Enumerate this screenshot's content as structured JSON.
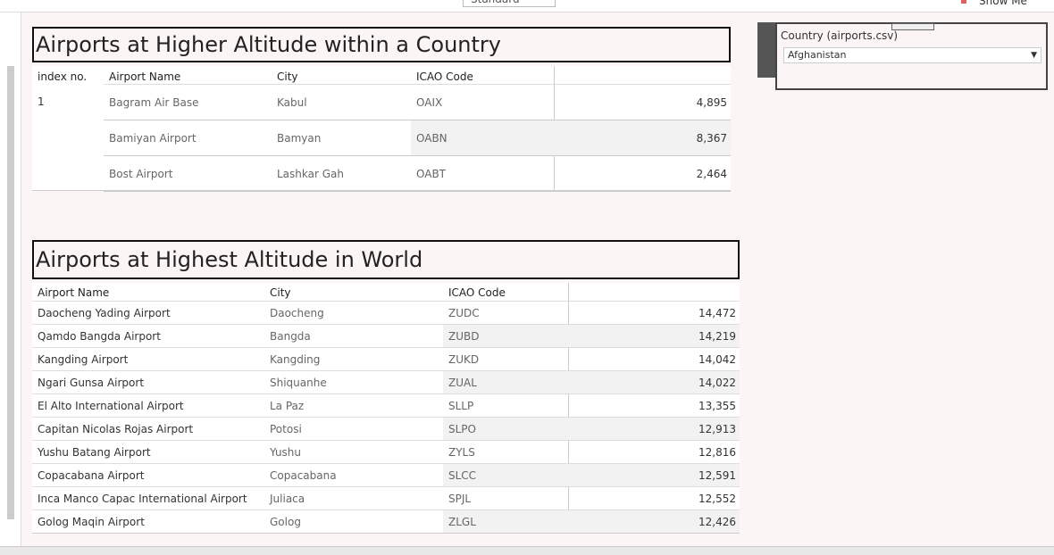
{
  "toolbar": {
    "view_size": "Standard",
    "show_me": "Show Me"
  },
  "table1": {
    "title": "Airports at Higher Altitude within a Country",
    "columns": [
      "index no.",
      "Airport Name",
      "City",
      "ICAO Code"
    ],
    "index": "1",
    "rows": [
      [
        "Bagram Air Base",
        "Kabul",
        "OAIX",
        "4,895"
      ],
      [
        "Bamiyan Airport",
        "Bamyan",
        "OABN",
        "8,367"
      ],
      [
        "Bost Airport",
        "Lashkar Gah",
        "OABT",
        "2,464"
      ]
    ]
  },
  "table2": {
    "title": "Airports at Highest Altitude in World",
    "columns": [
      "Airport Name",
      "City",
      "ICAO Code"
    ],
    "rows": [
      [
        "Daocheng Yading Airport",
        "Daocheng",
        "ZUDC",
        "14,472"
      ],
      [
        "Qamdo Bangda Airport",
        "Bangda",
        "ZUBD",
        "14,219"
      ],
      [
        "Kangding Airport",
        "Kangding",
        "ZUKD",
        "14,042"
      ],
      [
        "Ngari Gunsa Airport",
        "Shiquanhe",
        "ZUAL",
        "14,022"
      ],
      [
        "El Alto International Airport",
        "La Paz",
        "SLLP",
        "13,355"
      ],
      [
        "Capitan Nicolas Rojas Airport",
        "Potosi",
        "SLPO",
        "12,913"
      ],
      [
        "Yushu Batang Airport",
        "Yushu",
        "ZYLS",
        "12,816"
      ],
      [
        "Copacabana Airport",
        "Copacabana",
        "SLCC",
        "12,591"
      ],
      [
        "Inca Manco Capac International Airport",
        "Juliaca",
        "SPJL",
        "12,552"
      ],
      [
        "Golog Maqin Airport",
        "Golog",
        "ZLGL",
        "12,426"
      ]
    ]
  },
  "filter": {
    "title": "Country (airports.csv)",
    "selected": "Afghanistan"
  }
}
